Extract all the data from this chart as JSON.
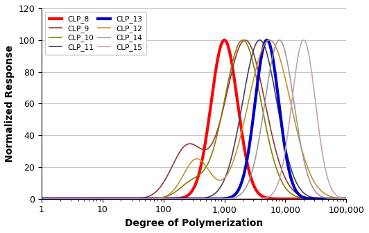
{
  "title": "",
  "xlabel": "Degree of Polymerization",
  "ylabel": "Normalized Response",
  "xlim": [
    1,
    100000
  ],
  "ylim": [
    0,
    120
  ],
  "yticks": [
    0,
    20,
    40,
    60,
    80,
    100,
    120
  ],
  "series": [
    {
      "name": "CLP_8",
      "color": "#FF0000",
      "lw": 3.0,
      "peak": 1000,
      "sigma": 0.5
    },
    {
      "name": "CLP_9",
      "color": "#993333",
      "lw": 1.2,
      "peak": 2200,
      "sigma": 0.75,
      "peak2": 250,
      "sigma2": 0.6,
      "amp2": 0.33
    },
    {
      "name": "CLP_10",
      "color": "#808000",
      "lw": 1.2,
      "peak": 2000,
      "sigma": 0.7,
      "peak2": 300,
      "sigma2": 0.5,
      "amp2": 0.1
    },
    {
      "name": "CLP_11",
      "color": "#404060",
      "lw": 1.2,
      "peak": 3800,
      "sigma": 0.65
    },
    {
      "name": "CLP_13",
      "color": "#0000CC",
      "lw": 3.0,
      "peak": 5000,
      "sigma": 0.45
    },
    {
      "name": "CLP_12",
      "color": "#C8902A",
      "lw": 1.2,
      "peak": 5500,
      "sigma": 0.8,
      "peak2": 350,
      "sigma2": 0.5,
      "amp2": 0.25
    },
    {
      "name": "CLP_14",
      "color": "#999999",
      "lw": 1.2,
      "peak": 8000,
      "sigma": 0.55
    },
    {
      "name": "CLP_15",
      "color": "#C8A0B8",
      "lw": 1.2,
      "peak": 20000,
      "sigma": 0.45
    }
  ],
  "legend_order": [
    "CLP_8",
    "CLP_9",
    "CLP_10",
    "CLP_11",
    "CLP_13",
    "CLP_12",
    "CLP_14",
    "CLP_15"
  ],
  "background_color": "#FFFFFF",
  "grid_color": "#C8C8C8"
}
